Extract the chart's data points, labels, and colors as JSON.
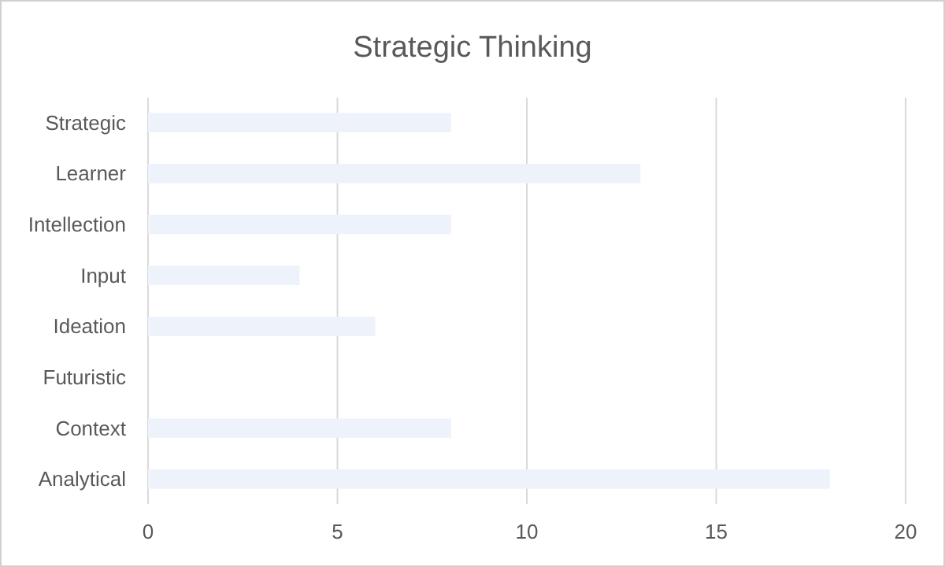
{
  "chart_data": {
    "type": "bar",
    "title": "Strategic Thinking",
    "orientation": "horizontal",
    "categories": [
      "Strategic",
      "Learner",
      "Intellection",
      "Input",
      "Ideation",
      "Futuristic",
      "Context",
      "Analytical"
    ],
    "values": [
      8,
      13,
      8,
      4,
      6,
      0,
      8,
      18
    ],
    "color": "#eef2fa",
    "xlim": [
      0,
      20
    ],
    "xticks": [
      0,
      5,
      10,
      15,
      20
    ],
    "grid": "x"
  }
}
